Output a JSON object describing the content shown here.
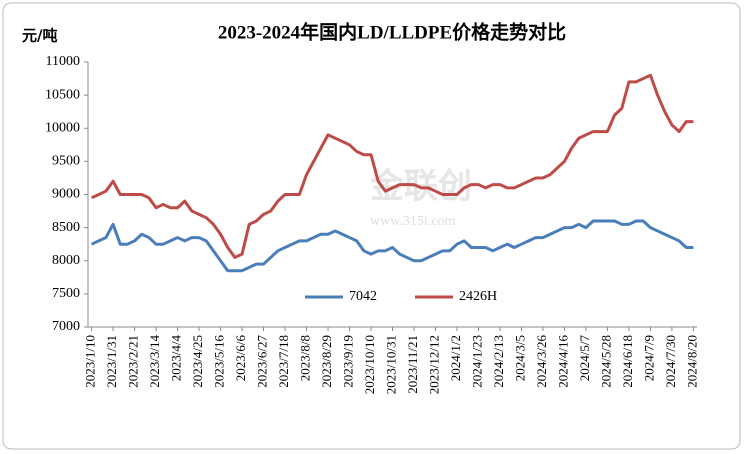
{
  "chart_data": {
    "type": "line",
    "title": "2023-2024年国内LD/LLDPE价格走势对比",
    "y_label": "元/吨",
    "watermark": "金联创",
    "watermark_url": "www.315i.com",
    "categories": [
      "2023/1/10",
      null,
      null,
      "2023/1/31",
      null,
      null,
      "2023/2/21",
      null,
      null,
      "2023/3/14",
      null,
      null,
      "2023/4/4",
      null,
      null,
      "2023/4/25",
      null,
      null,
      "2023/5/16",
      null,
      null,
      "2023/6/6",
      null,
      null,
      "2023/6/27",
      null,
      null,
      "2023/7/18",
      null,
      null,
      "2023/8/8",
      null,
      null,
      "2023/8/29",
      null,
      null,
      "2023/9/19",
      null,
      null,
      "2023/10/10",
      null,
      null,
      "2023/10/31",
      null,
      null,
      "2023/11/21",
      null,
      null,
      "2023/12/12",
      null,
      null,
      "2024/1/2",
      null,
      null,
      "2024/1/23",
      null,
      null,
      "2024/2/13",
      null,
      null,
      "2024/3/5",
      null,
      null,
      "2024/3/26",
      null,
      null,
      "2024/4/16",
      null,
      null,
      "2024/5/7",
      null,
      null,
      "2024/5/28",
      null,
      null,
      "2024/6/18",
      null,
      null,
      "2024/7/9",
      null,
      null,
      "2024/7/30",
      null,
      null,
      "2024/8/20"
    ],
    "series": [
      {
        "name": "7042",
        "color": "#4a7ebb",
        "values": [
          8250,
          8300,
          8350,
          8550,
          8250,
          8250,
          8300,
          8400,
          8350,
          8250,
          8250,
          8300,
          8350,
          8300,
          8350,
          8350,
          8300,
          8150,
          8000,
          7850,
          7850,
          7850,
          7900,
          7950,
          7950,
          8050,
          8150,
          8200,
          8250,
          8300,
          8300,
          8350,
          8400,
          8400,
          8450,
          8400,
          8350,
          8300,
          8150,
          8100,
          8150,
          8150,
          8200,
          8100,
          8050,
          8000,
          8000,
          8050,
          8100,
          8150,
          8150,
          8250,
          8300,
          8200,
          8200,
          8200,
          8150,
          8200,
          8250,
          8200,
          8250,
          8300,
          8350,
          8350,
          8400,
          8450,
          8500,
          8500,
          8550,
          8500,
          8600,
          8600,
          8600,
          8600,
          8550,
          8550,
          8600,
          8600,
          8500,
          8450,
          8400,
          8350,
          8300,
          8200,
          8200
        ]
      },
      {
        "name": "2426H",
        "color": "#be4b48",
        "values": [
          8950,
          9000,
          9050,
          9200,
          9000,
          9000,
          9000,
          9000,
          8950,
          8800,
          8850,
          8800,
          8800,
          8900,
          8750,
          8700,
          8650,
          8550,
          8400,
          8200,
          8050,
          8100,
          8550,
          8600,
          8700,
          8750,
          8900,
          9000,
          9000,
          9000,
          9300,
          9500,
          9700,
          9900,
          9850,
          9800,
          9750,
          9650,
          9600,
          9600,
          9200,
          9050,
          9100,
          9150,
          9150,
          9150,
          9100,
          9100,
          9050,
          9000,
          9000,
          9000,
          9100,
          9150,
          9150,
          9100,
          9150,
          9150,
          9100,
          9100,
          9150,
          9200,
          9250,
          9250,
          9300,
          9400,
          9500,
          9700,
          9850,
          9900,
          9950,
          9950,
          9950,
          10200,
          10300,
          10700,
          10700,
          10750,
          10800,
          10500,
          10250,
          10050,
          9950,
          10100,
          10100
        ]
      }
    ],
    "ylim": [
      7000,
      11000
    ],
    "yticks": [
      7000,
      7500,
      8000,
      8500,
      9000,
      9500,
      10000,
      10500,
      11000
    ],
    "grid": false,
    "legend": "bottom"
  }
}
